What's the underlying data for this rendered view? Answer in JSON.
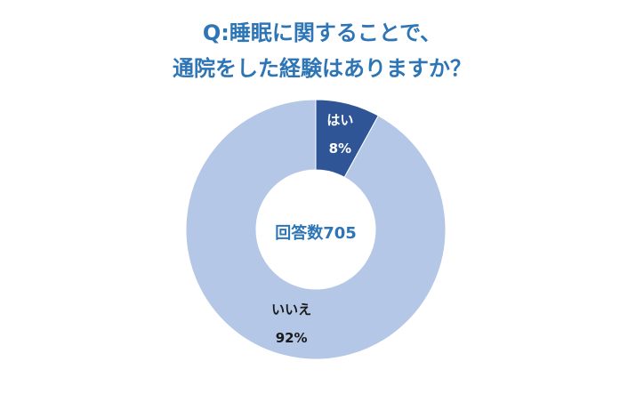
{
  "chart_data": {
    "type": "donut",
    "title": [
      "Q:睡眠に関することで、",
      "通院をした経験はありますか？"
    ],
    "center_label": "回答数705",
    "categories": [
      "はい",
      "いいえ"
    ],
    "values": [
      8,
      92
    ],
    "value_labels": [
      "8%",
      "92%"
    ],
    "colors": [
      "#2f5597",
      "#b4c7e7"
    ],
    "label_colors": [
      "#ffffff",
      "#1a1a1a"
    ]
  }
}
